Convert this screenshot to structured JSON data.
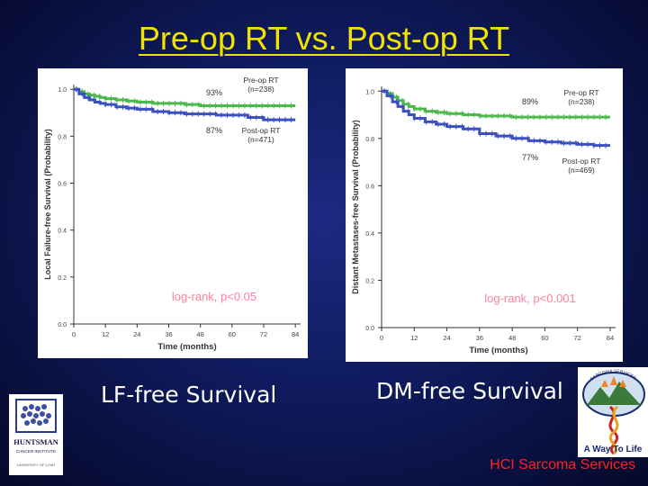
{
  "slide": {
    "title": "Pre-op RT vs. Post-op RT",
    "caption_left": "LF-free Survival",
    "caption_right": "DM-free Survival",
    "footer": "HCI  Sarcoma Services"
  },
  "logos": {
    "huntsman": {
      "name": "HUNTSMAN",
      "sub": "CANCER INSTITUTE",
      "sub2": "UNIVERSITY OF UTAH"
    },
    "sarcoma": {
      "top": "SARCOMA SERVICES",
      "tagline": "A Way To Life"
    }
  },
  "colors": {
    "title": "#f2e200",
    "preop": "#4cb84c",
    "postop": "#3a4fc0",
    "pvalue": "#ff80a0",
    "footer": "#ff2020",
    "axis_text": "#444444"
  },
  "chart_data": [
    {
      "type": "line",
      "title": "",
      "xlabel": "Time (months)",
      "ylabel": "Local Failure-free Survival (Probability)",
      "xlim": [
        0,
        86
      ],
      "ylim": [
        0,
        1.02
      ],
      "xticks": [
        0,
        12,
        24,
        36,
        48,
        60,
        72,
        84
      ],
      "xtick_labels": [
        "0",
        "12",
        "24",
        "36",
        "48",
        "60",
        "72",
        "84"
      ],
      "yticks": [
        0,
        0.2,
        0.4,
        0.6,
        0.8,
        1.0
      ],
      "ytick_labels": [
        "0.0",
        "0.2",
        "0.4",
        "0.6",
        "0.8",
        "1.0"
      ],
      "series": [
        {
          "name": "Pre-op RT (n=238)",
          "label_line1": "Pre-op RT",
          "label_line2": "(n=238)",
          "end_label": "93%",
          "color": "#4cb84c",
          "x": [
            0,
            2,
            4,
            6,
            8,
            10,
            12,
            16,
            20,
            24,
            30,
            36,
            42,
            48,
            54,
            60,
            66,
            72,
            78,
            84
          ],
          "y": [
            1.0,
            0.99,
            0.98,
            0.975,
            0.97,
            0.965,
            0.96,
            0.955,
            0.95,
            0.945,
            0.94,
            0.94,
            0.935,
            0.93,
            0.93,
            0.93,
            0.93,
            0.93,
            0.93,
            0.93
          ]
        },
        {
          "name": "Post-op RT (n=471)",
          "label_line1": "Post-op RT",
          "label_line2": "(n=471)",
          "end_label": "87%",
          "color": "#3a4fc0",
          "x": [
            0,
            2,
            4,
            6,
            8,
            10,
            12,
            16,
            20,
            24,
            30,
            36,
            42,
            48,
            54,
            60,
            66,
            72,
            78,
            84
          ],
          "y": [
            1.0,
            0.98,
            0.965,
            0.955,
            0.945,
            0.94,
            0.935,
            0.925,
            0.92,
            0.915,
            0.905,
            0.9,
            0.895,
            0.895,
            0.89,
            0.89,
            0.88,
            0.87,
            0.87,
            0.87
          ]
        }
      ],
      "annotation": "log-rank, p<0.05"
    },
    {
      "type": "line",
      "title": "",
      "xlabel": "Time (months)",
      "ylabel": "Distant Metastases-free Survival (Probability)",
      "xlim": [
        0,
        86
      ],
      "ylim": [
        0,
        1.02
      ],
      "xticks": [
        0,
        12,
        24,
        36,
        48,
        60,
        72,
        84
      ],
      "xtick_labels": [
        "0",
        "12",
        "24",
        "36",
        "48",
        "60",
        "72",
        "84"
      ],
      "yticks": [
        0,
        0.2,
        0.4,
        0.6,
        0.8,
        1.0
      ],
      "ytick_labels": [
        "0.0",
        "0.2",
        "0.4",
        "0.6",
        "0.8",
        "1.0"
      ],
      "series": [
        {
          "name": "Pre-op RT (n=238)",
          "label_line1": "Pre-op RT",
          "label_line2": "(n=238)",
          "end_label": "89%",
          "color": "#4cb84c",
          "x": [
            0,
            2,
            4,
            6,
            8,
            10,
            12,
            16,
            20,
            24,
            30,
            36,
            42,
            48,
            54,
            60,
            66,
            72,
            78,
            84
          ],
          "y": [
            1.0,
            0.99,
            0.975,
            0.96,
            0.945,
            0.935,
            0.925,
            0.915,
            0.91,
            0.905,
            0.9,
            0.895,
            0.895,
            0.89,
            0.89,
            0.89,
            0.89,
            0.89,
            0.89,
            0.89
          ]
        },
        {
          "name": "Post-op RT (n=469)",
          "label_line1": "Post-op RT",
          "label_line2": "(n=469)",
          "end_label": "77%",
          "color": "#3a4fc0",
          "x": [
            0,
            2,
            4,
            6,
            8,
            10,
            12,
            16,
            20,
            24,
            30,
            36,
            42,
            48,
            54,
            60,
            66,
            72,
            78,
            84
          ],
          "y": [
            1.0,
            0.98,
            0.955,
            0.935,
            0.915,
            0.9,
            0.885,
            0.87,
            0.86,
            0.85,
            0.84,
            0.82,
            0.81,
            0.8,
            0.79,
            0.785,
            0.78,
            0.775,
            0.77,
            0.77
          ]
        }
      ],
      "annotation": "log-rank, p<0.001"
    }
  ]
}
